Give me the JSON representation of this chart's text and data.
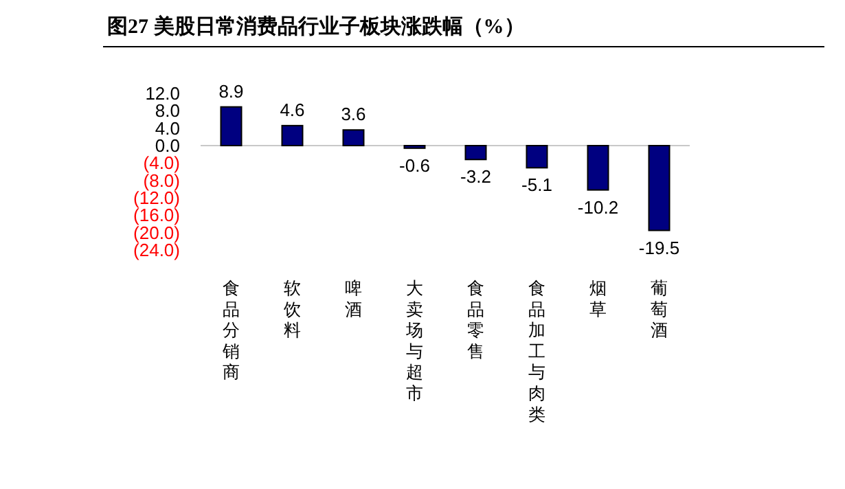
{
  "chart_data": {
    "type": "bar",
    "title": "图27 美股日常消费品行业子板块涨跌幅（%）",
    "categories": [
      "食品分销商",
      "软饮料",
      "啤酒",
      "大卖场与超市",
      "食品零售",
      "食品加工与肉类",
      "烟草",
      "葡萄酒"
    ],
    "values": [
      8.9,
      4.6,
      3.6,
      -0.6,
      -3.2,
      -5.1,
      -10.2,
      -19.5
    ],
    "color": "#000080",
    "data_labels": true,
    "ylim": [
      -24,
      12
    ],
    "yticks": [
      {
        "value": 12,
        "label": "12.0"
      },
      {
        "value": 8,
        "label": "8.0"
      },
      {
        "value": 4,
        "label": "4.0"
      },
      {
        "value": 0,
        "label": "0.0"
      },
      {
        "value": -4,
        "label": "(4.0)"
      },
      {
        "value": -8,
        "label": "(8.0)"
      },
      {
        "value": -12,
        "label": "(12.0)"
      },
      {
        "value": -16,
        "label": "(16.0)"
      },
      {
        "value": -20,
        "label": "(20.0)"
      },
      {
        "value": -24,
        "label": "(24.0)"
      }
    ]
  }
}
